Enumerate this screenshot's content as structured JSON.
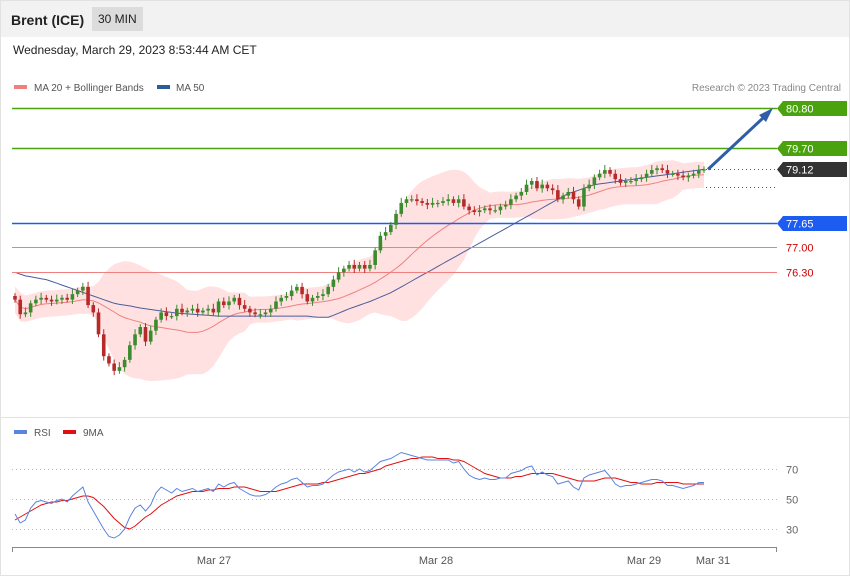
{
  "header": {
    "instrument": "Brent (ICE)",
    "timeframe": "30 MIN",
    "datetime": "Wednesday, March 29, 2023 8:53:44 AM CET"
  },
  "legend": [
    {
      "label": "MA 20 + Bollinger Bands",
      "color": "#f08080"
    },
    {
      "label": "MA 50",
      "color": "#2f5b9a"
    }
  ],
  "credit": "Research © 2023 Trading Central",
  "colors": {
    "up": "#3d8b2f",
    "down": "#b72a2a",
    "band": "#ffe1e1",
    "ma20": "#f08080",
    "ma50": "#4a5e9c",
    "resistance": "#4aa30e",
    "support_blue": "#1d5cf0",
    "support_red": "#f08080",
    "current": "#333333",
    "arrow": "#2e5ea8"
  },
  "chart_data": [
    {
      "type": "candlestick",
      "ylim": [
        73.0,
        81.2
      ],
      "levels": [
        {
          "value": 80.8,
          "label": "80.80",
          "kind": "resistance"
        },
        {
          "value": 79.7,
          "label": "79.70",
          "kind": "resistance"
        },
        {
          "value": 79.12,
          "label": "79.12",
          "kind": "current"
        },
        {
          "value": 77.65,
          "label": "77.65",
          "kind": "pivot"
        },
        {
          "value": 77.0,
          "label": "77.00",
          "kind": "support"
        },
        {
          "value": 76.3,
          "label": "76.30",
          "kind": "support"
        }
      ],
      "forecast_arrow": {
        "from": 79.12,
        "to": 80.8
      },
      "legend": [
        "MA 20 + Bollinger Bands",
        "MA 50"
      ],
      "close": [
        75.55,
        75.15,
        75.2,
        75.45,
        75.55,
        75.6,
        75.55,
        75.5,
        75.55,
        75.6,
        75.55,
        75.7,
        75.8,
        75.9,
        75.4,
        75.2,
        74.6,
        74.0,
        73.8,
        73.6,
        73.7,
        73.9,
        74.3,
        74.6,
        74.8,
        74.4,
        74.7,
        75.0,
        75.2,
        75.1,
        75.1,
        75.3,
        75.2,
        75.25,
        75.3,
        75.2,
        75.25,
        75.3,
        75.2,
        75.5,
        75.4,
        75.5,
        75.6,
        75.4,
        75.3,
        75.2,
        75.15,
        75.15,
        75.2,
        75.3,
        75.5,
        75.6,
        75.65,
        75.8,
        75.9,
        75.7,
        75.5,
        75.6,
        75.65,
        75.7,
        75.9,
        76.1,
        76.3,
        76.4,
        76.5,
        76.4,
        76.5,
        76.4,
        76.5,
        76.9,
        77.3,
        77.4,
        77.6,
        77.9,
        78.2,
        78.3,
        78.3,
        78.25,
        78.2,
        78.15,
        78.2,
        78.2,
        78.25,
        78.3,
        78.2,
        78.3,
        78.1,
        78.0,
        77.95,
        78.0,
        78.05,
        78.0,
        78.0,
        78.1,
        78.15,
        78.3,
        78.4,
        78.5,
        78.7,
        78.8,
        78.6,
        78.7,
        78.6,
        78.55,
        78.3,
        78.4,
        78.5,
        78.3,
        78.1,
        78.6,
        78.7,
        78.9,
        79.0,
        79.1,
        79.0,
        78.85,
        78.75,
        78.8,
        78.8,
        78.85,
        78.9,
        79.0,
        79.1,
        79.15,
        79.1,
        79.0,
        79.0,
        78.95,
        78.9,
        78.95,
        79.0,
        79.1,
        79.12
      ],
      "ma50": [
        76.3,
        76.25,
        76.2,
        76.18,
        76.15,
        76.12,
        76.1,
        76.05,
        76.0,
        75.95,
        75.9,
        75.85,
        75.8,
        75.75,
        75.7,
        75.65,
        75.6,
        75.55,
        75.5,
        75.45,
        75.42,
        75.4,
        75.38,
        75.35,
        75.32,
        75.3,
        75.28,
        75.26,
        75.24,
        75.22,
        75.2,
        75.18,
        75.17,
        75.16,
        75.15,
        75.14,
        75.13,
        75.12,
        75.11,
        75.1,
        75.1,
        75.1,
        75.1,
        75.1,
        75.1,
        75.1,
        75.1,
        75.1,
        75.1,
        75.1,
        75.1,
        75.1,
        75.1,
        75.1,
        75.1,
        75.1,
        75.1,
        75.08,
        75.07,
        75.07,
        75.07,
        75.12,
        75.18,
        75.24,
        75.3,
        75.35,
        75.4,
        75.45,
        75.5,
        75.56,
        75.62,
        75.68,
        75.74,
        75.82,
        75.9,
        75.98,
        76.06,
        76.14,
        76.22,
        76.3,
        76.38,
        76.46,
        76.54,
        76.62,
        76.7,
        76.78,
        76.86,
        76.94,
        77.02,
        77.1,
        77.18,
        77.26,
        77.34,
        77.42,
        77.5,
        77.58,
        77.66,
        77.74,
        77.82,
        77.9,
        77.98,
        78.06,
        78.14,
        78.22,
        78.3,
        78.38,
        78.46,
        78.5,
        78.55,
        78.6,
        78.65,
        78.7,
        78.72,
        78.74,
        78.76,
        78.78,
        78.8,
        78.82,
        78.84,
        78.86,
        78.88,
        78.9,
        78.92,
        78.94,
        78.96,
        78.98,
        79.0,
        79.02,
        79.04,
        79.06,
        79.08,
        79.1,
        79.12
      ]
    },
    {
      "type": "line",
      "title": "RSI",
      "series": [
        {
          "name": "RSI"
        },
        {
          "name": "9MA"
        }
      ],
      "ylim": [
        20,
        80
      ],
      "yticks": [
        30,
        50,
        70
      ],
      "x_tick_labels": [
        "Mar 27",
        "Mar 28",
        "Mar 29",
        "Mar 31"
      ],
      "rsi": [
        40,
        34,
        36,
        44,
        48,
        49,
        48,
        47,
        49,
        50,
        48,
        52,
        55,
        58,
        48,
        42,
        36,
        30,
        25,
        24,
        26,
        30,
        38,
        44,
        46,
        42,
        46,
        54,
        58,
        56,
        54,
        57,
        55,
        56,
        57,
        55,
        56,
        57,
        55,
        60,
        58,
        60,
        61,
        57,
        55,
        53,
        52,
        52,
        53,
        55,
        58,
        60,
        61,
        63,
        64,
        61,
        58,
        59,
        59,
        60,
        63,
        66,
        68,
        69,
        70,
        68,
        70,
        68,
        69,
        72,
        75,
        76,
        77,
        79,
        81,
        80,
        79,
        78,
        77,
        76,
        76,
        76,
        76,
        76,
        74,
        75,
        70,
        66,
        64,
        63,
        64,
        63,
        63,
        64,
        64,
        67,
        68,
        69,
        71,
        72,
        66,
        68,
        66,
        65,
        60,
        61,
        62,
        58,
        56,
        64,
        66,
        67,
        68,
        69,
        65,
        60,
        58,
        59,
        59,
        60,
        61,
        62,
        63,
        63,
        62,
        59,
        59,
        58,
        57,
        58,
        59,
        61,
        61
      ],
      "rsi_ma": [
        36,
        38,
        40,
        42,
        44,
        46,
        47,
        48,
        48,
        49,
        49,
        50,
        51,
        52,
        52,
        51,
        48,
        45,
        41,
        37,
        34,
        31,
        30,
        32,
        35,
        38,
        40,
        43,
        46,
        48,
        50,
        52,
        53,
        54,
        55,
        55,
        55,
        56,
        56,
        57,
        57,
        57,
        58,
        58,
        58,
        57,
        56,
        55,
        55,
        55,
        55,
        56,
        57,
        58,
        59,
        60,
        60,
        60,
        60,
        61,
        61,
        62,
        63,
        64,
        65,
        66,
        67,
        67,
        68,
        69,
        70,
        72,
        73,
        74,
        75,
        76,
        77,
        77,
        78,
        78,
        78,
        77,
        77,
        77,
        76,
        76,
        75,
        73,
        71,
        69,
        67,
        66,
        65,
        64,
        64,
        64,
        65,
        65,
        66,
        67,
        67,
        67,
        67,
        67,
        66,
        65,
        64,
        63,
        62,
        62,
        62,
        62,
        63,
        64,
        64,
        64,
        63,
        62,
        61,
        61,
        60,
        60,
        60,
        61,
        61,
        61,
        61,
        61,
        60,
        60,
        60,
        60,
        60
      ]
    }
  ]
}
